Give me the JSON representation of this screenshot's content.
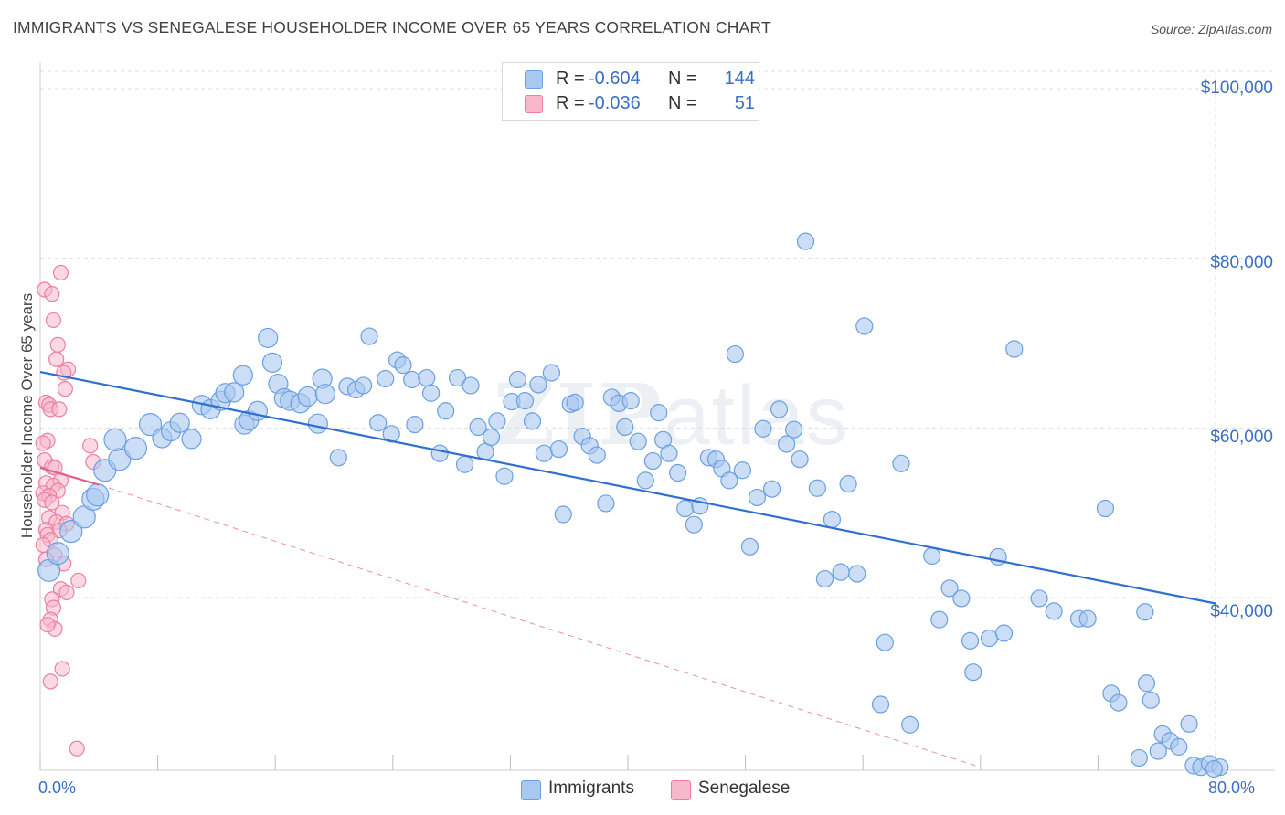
{
  "header": {
    "title": "IMMIGRANTS VS SENEGALESE HOUSEHOLDER INCOME OVER 65 YEARS CORRELATION CHART",
    "source": "Source: ZipAtlas.com"
  },
  "watermark": {
    "zip": "ZIP",
    "atlas": "atlas"
  },
  "legend": {
    "rows": [
      {
        "r_label": "R =",
        "r_value": "-0.604",
        "n_label": "N =",
        "n_value": "144"
      },
      {
        "r_label": "R =",
        "r_value": "-0.036",
        "n_label": "N =",
        "n_value": "51"
      }
    ]
  },
  "bottom_legend": {
    "items": [
      "Immigrants",
      "Senegalese"
    ]
  },
  "colors": {
    "immigrants_fill": "#a8c8f0",
    "immigrants_stroke": "#6a9fe0",
    "immigrants_line": "#2e6fd0",
    "senegalese_fill": "#f8b8cc",
    "senegalese_stroke": "#ec7fa0",
    "senegalese_line": "#e0608a",
    "axis_text": "#3a6fc4",
    "grid": "#dddddd"
  },
  "chart_data": {
    "type": "scatter",
    "title": "IMMIGRANTS VS SENEGALESE HOUSEHOLDER INCOME OVER 65 YEARS CORRELATION CHART",
    "xlabel": "",
    "ylabel": "Householder Income Over 65 years",
    "xlim": [
      0,
      80
    ],
    "ylim": [
      20000,
      102000
    ],
    "x_tick_labels": [
      "0.0%",
      "80.0%"
    ],
    "y_tick_values": [
      40000,
      60000,
      80000,
      100000
    ],
    "y_tick_labels": [
      "$40,000",
      "$60,000",
      "$80,000",
      "$100,000"
    ],
    "grid": true,
    "legend_position": "top-center",
    "series": [
      {
        "name": "Immigrants",
        "r": -0.604,
        "n": 144,
        "trend": {
          "x": [
            0,
            80
          ],
          "y": [
            66600,
            39300
          ],
          "style": "solid"
        },
        "points": [
          [
            0.6,
            43200
          ],
          [
            1.2,
            45200
          ],
          [
            2.1,
            47800
          ],
          [
            3.0,
            49500
          ],
          [
            3.6,
            51600
          ],
          [
            3.9,
            52100
          ],
          [
            4.4,
            55000
          ],
          [
            5.4,
            56300
          ],
          [
            5.1,
            58600
          ],
          [
            6.5,
            57600
          ],
          [
            7.5,
            60400
          ],
          [
            8.3,
            58800
          ],
          [
            8.9,
            59600
          ],
          [
            9.5,
            60600
          ],
          [
            10.3,
            58700
          ],
          [
            11.0,
            62700
          ],
          [
            11.6,
            62200
          ],
          [
            12.3,
            63200
          ],
          [
            12.6,
            64100
          ],
          [
            13.2,
            64200
          ],
          [
            13.8,
            66200
          ],
          [
            13.9,
            60400
          ],
          [
            14.2,
            60900
          ],
          [
            14.8,
            62000
          ],
          [
            15.5,
            70600
          ],
          [
            15.8,
            67700
          ],
          [
            16.2,
            65200
          ],
          [
            16.6,
            63500
          ],
          [
            17.0,
            63200
          ],
          [
            17.7,
            62900
          ],
          [
            18.2,
            63700
          ],
          [
            18.9,
            60500
          ],
          [
            19.2,
            65800
          ],
          [
            19.4,
            64000
          ],
          [
            20.3,
            56500
          ],
          [
            20.9,
            64900
          ],
          [
            21.5,
            64500
          ],
          [
            22.0,
            65000
          ],
          [
            22.4,
            70800
          ],
          [
            23.0,
            60600
          ],
          [
            23.5,
            65800
          ],
          [
            23.9,
            59300
          ],
          [
            24.3,
            68000
          ],
          [
            24.7,
            67400
          ],
          [
            25.3,
            65700
          ],
          [
            25.5,
            60400
          ],
          [
            26.3,
            65900
          ],
          [
            26.6,
            64100
          ],
          [
            27.2,
            57000
          ],
          [
            27.6,
            62000
          ],
          [
            28.4,
            65900
          ],
          [
            28.9,
            55700
          ],
          [
            29.3,
            65000
          ],
          [
            29.8,
            60100
          ],
          [
            30.3,
            57200
          ],
          [
            30.7,
            58900
          ],
          [
            31.1,
            60800
          ],
          [
            31.6,
            54300
          ],
          [
            32.1,
            63100
          ],
          [
            32.5,
            65700
          ],
          [
            33.0,
            63200
          ],
          [
            33.5,
            60800
          ],
          [
            33.9,
            65100
          ],
          [
            34.3,
            57000
          ],
          [
            34.8,
            66500
          ],
          [
            35.3,
            57500
          ],
          [
            35.6,
            49800
          ],
          [
            36.1,
            62800
          ],
          [
            36.4,
            63000
          ],
          [
            36.9,
            59000
          ],
          [
            37.4,
            57900
          ],
          [
            37.9,
            56800
          ],
          [
            38.5,
            51100
          ],
          [
            38.9,
            63600
          ],
          [
            39.4,
            62900
          ],
          [
            39.8,
            60100
          ],
          [
            40.2,
            63200
          ],
          [
            40.7,
            58400
          ],
          [
            41.2,
            53800
          ],
          [
            41.7,
            56100
          ],
          [
            42.1,
            61800
          ],
          [
            42.4,
            58600
          ],
          [
            42.8,
            57000
          ],
          [
            43.4,
            54700
          ],
          [
            43.9,
            50500
          ],
          [
            44.5,
            48600
          ],
          [
            44.9,
            50800
          ],
          [
            45.5,
            56500
          ],
          [
            46.0,
            56300
          ],
          [
            46.4,
            55200
          ],
          [
            46.9,
            53800
          ],
          [
            47.3,
            68700
          ],
          [
            47.8,
            55000
          ],
          [
            48.3,
            46000
          ],
          [
            48.8,
            51800
          ],
          [
            49.2,
            59900
          ],
          [
            49.8,
            52800
          ],
          [
            50.3,
            62200
          ],
          [
            50.8,
            58100
          ],
          [
            51.3,
            59800
          ],
          [
            51.7,
            56300
          ],
          [
            52.1,
            82000
          ],
          [
            52.9,
            52900
          ],
          [
            53.4,
            42200
          ],
          [
            53.9,
            49200
          ],
          [
            54.5,
            43000
          ],
          [
            55.0,
            53400
          ],
          [
            55.6,
            42800
          ],
          [
            56.1,
            72000
          ],
          [
            57.2,
            27400
          ],
          [
            57.5,
            34700
          ],
          [
            58.6,
            55800
          ],
          [
            59.2,
            25000
          ],
          [
            60.7,
            44900
          ],
          [
            61.2,
            37400
          ],
          [
            61.9,
            41100
          ],
          [
            62.7,
            39900
          ],
          [
            63.3,
            34900
          ],
          [
            63.5,
            31200
          ],
          [
            64.6,
            35200
          ],
          [
            65.2,
            44800
          ],
          [
            65.6,
            35800
          ],
          [
            66.3,
            69300
          ],
          [
            68.0,
            39900
          ],
          [
            69.0,
            38400
          ],
          [
            70.7,
            37500
          ],
          [
            71.3,
            37500
          ],
          [
            72.5,
            50500
          ],
          [
            72.9,
            28700
          ],
          [
            73.4,
            27600
          ],
          [
            75.2,
            38300
          ],
          [
            75.6,
            27900
          ],
          [
            75.3,
            29900
          ],
          [
            76.4,
            23900
          ],
          [
            76.9,
            23100
          ],
          [
            77.5,
            22400
          ],
          [
            78.5,
            20200
          ],
          [
            79.0,
            20000
          ],
          [
            79.6,
            20400
          ],
          [
            80.3,
            20000
          ],
          [
            78.2,
            25100
          ],
          [
            74.8,
            21100
          ],
          [
            76.1,
            21900
          ],
          [
            79.9,
            19800
          ]
        ]
      },
      {
        "name": "Senegalese",
        "r": -0.036,
        "n": 51,
        "trend": {
          "x": [
            0,
            4
          ],
          "y": [
            55300,
            53300
          ],
          "style": "solid"
        },
        "trend_extended": {
          "x": [
            4,
            64
          ],
          "y": [
            53300,
            20000
          ],
          "style": "dashed"
        },
        "points": [
          [
            0.3,
            76300
          ],
          [
            0.8,
            75800
          ],
          [
            1.4,
            78300
          ],
          [
            0.9,
            72700
          ],
          [
            1.2,
            69800
          ],
          [
            1.1,
            68100
          ],
          [
            1.9,
            66900
          ],
          [
            1.6,
            66500
          ],
          [
            1.7,
            64600
          ],
          [
            0.4,
            63000
          ],
          [
            0.6,
            62700
          ],
          [
            0.7,
            62200
          ],
          [
            1.3,
            62200
          ],
          [
            0.5,
            58500
          ],
          [
            0.2,
            58200
          ],
          [
            3.4,
            57900
          ],
          [
            3.6,
            56000
          ],
          [
            0.3,
            56200
          ],
          [
            0.8,
            55400
          ],
          [
            1.0,
            55300
          ],
          [
            1.4,
            53800
          ],
          [
            0.4,
            53500
          ],
          [
            0.9,
            53200
          ],
          [
            1.2,
            52600
          ],
          [
            0.2,
            52300
          ],
          [
            0.6,
            52000
          ],
          [
            0.3,
            51500
          ],
          [
            0.8,
            51200
          ],
          [
            1.5,
            50000
          ],
          [
            0.6,
            49400
          ],
          [
            1.1,
            48900
          ],
          [
            1.8,
            48700
          ],
          [
            0.4,
            48000
          ],
          [
            1.3,
            47900
          ],
          [
            0.5,
            47400
          ],
          [
            0.7,
            46800
          ],
          [
            0.2,
            46200
          ],
          [
            1.0,
            45000
          ],
          [
            0.4,
            44500
          ],
          [
            1.6,
            44000
          ],
          [
            2.6,
            42000
          ],
          [
            1.4,
            41000
          ],
          [
            1.8,
            40600
          ],
          [
            0.8,
            39800
          ],
          [
            0.9,
            38800
          ],
          [
            0.7,
            37400
          ],
          [
            1.0,
            36300
          ],
          [
            1.5,
            31600
          ],
          [
            0.7,
            30100
          ],
          [
            2.5,
            22200
          ],
          [
            0.5,
            36800
          ]
        ]
      }
    ]
  }
}
